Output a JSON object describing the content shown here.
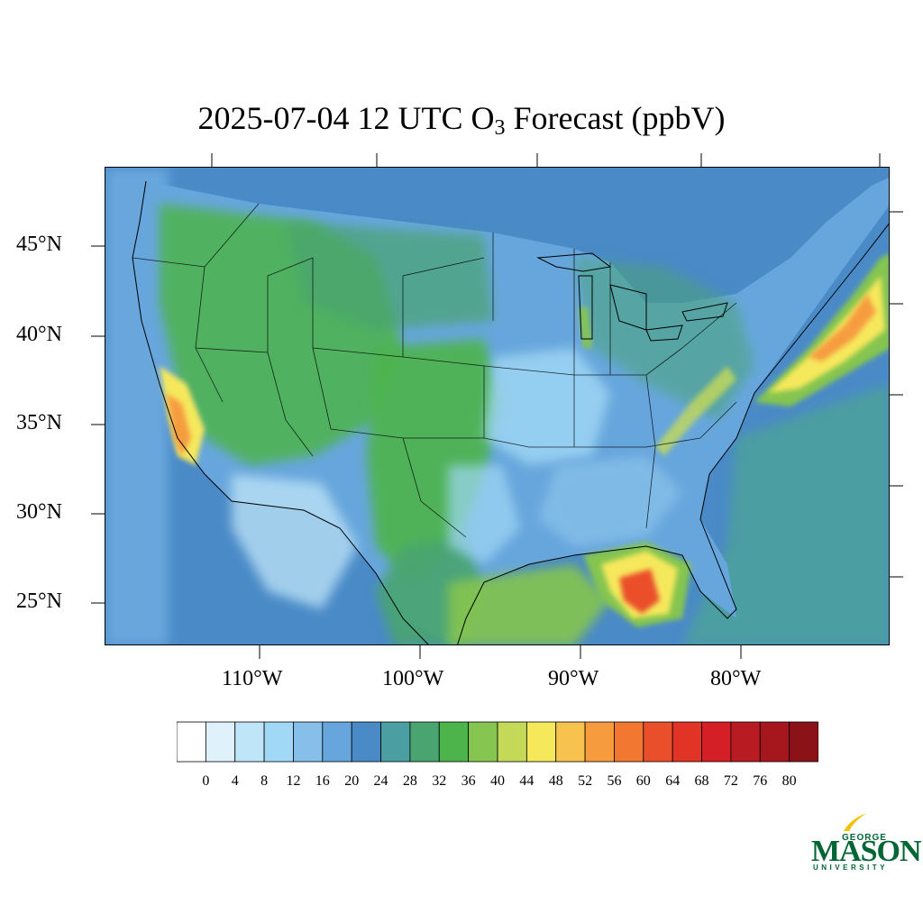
{
  "title": {
    "prefix": "2025-07-04 12 UTC O",
    "subscript": "3",
    "suffix": " Forecast (ppbV)"
  },
  "map": {
    "lat_labels": [
      "45°N",
      "40°N",
      "35°N",
      "30°N",
      "25°N"
    ],
    "lon_labels": [
      "110°W",
      "100°W",
      "90°W",
      "80°W"
    ]
  },
  "colorbar": {
    "labels": [
      "0",
      "4",
      "8",
      "12",
      "16",
      "20",
      "24",
      "28",
      "32",
      "36",
      "40",
      "44",
      "48",
      "52",
      "56",
      "60",
      "64",
      "68",
      "72",
      "76",
      "80"
    ],
    "colors": [
      "#ffffff",
      "#dff1fb",
      "#bfe5f8",
      "#a0d8f5",
      "#86c0ea",
      "#67a6dc",
      "#4a8ac7",
      "#4b9ea1",
      "#4aa46f",
      "#4db44c",
      "#85c550",
      "#c5d959",
      "#f6e85b",
      "#f7c24e",
      "#f69c3f",
      "#f27731",
      "#ea4f2c",
      "#e23426",
      "#d41f26",
      "#b81b22",
      "#a5171d",
      "#8b1318"
    ]
  },
  "logo": {
    "top": "GEORGE",
    "main": "MASON",
    "bottom": "UNIVERSITY"
  }
}
